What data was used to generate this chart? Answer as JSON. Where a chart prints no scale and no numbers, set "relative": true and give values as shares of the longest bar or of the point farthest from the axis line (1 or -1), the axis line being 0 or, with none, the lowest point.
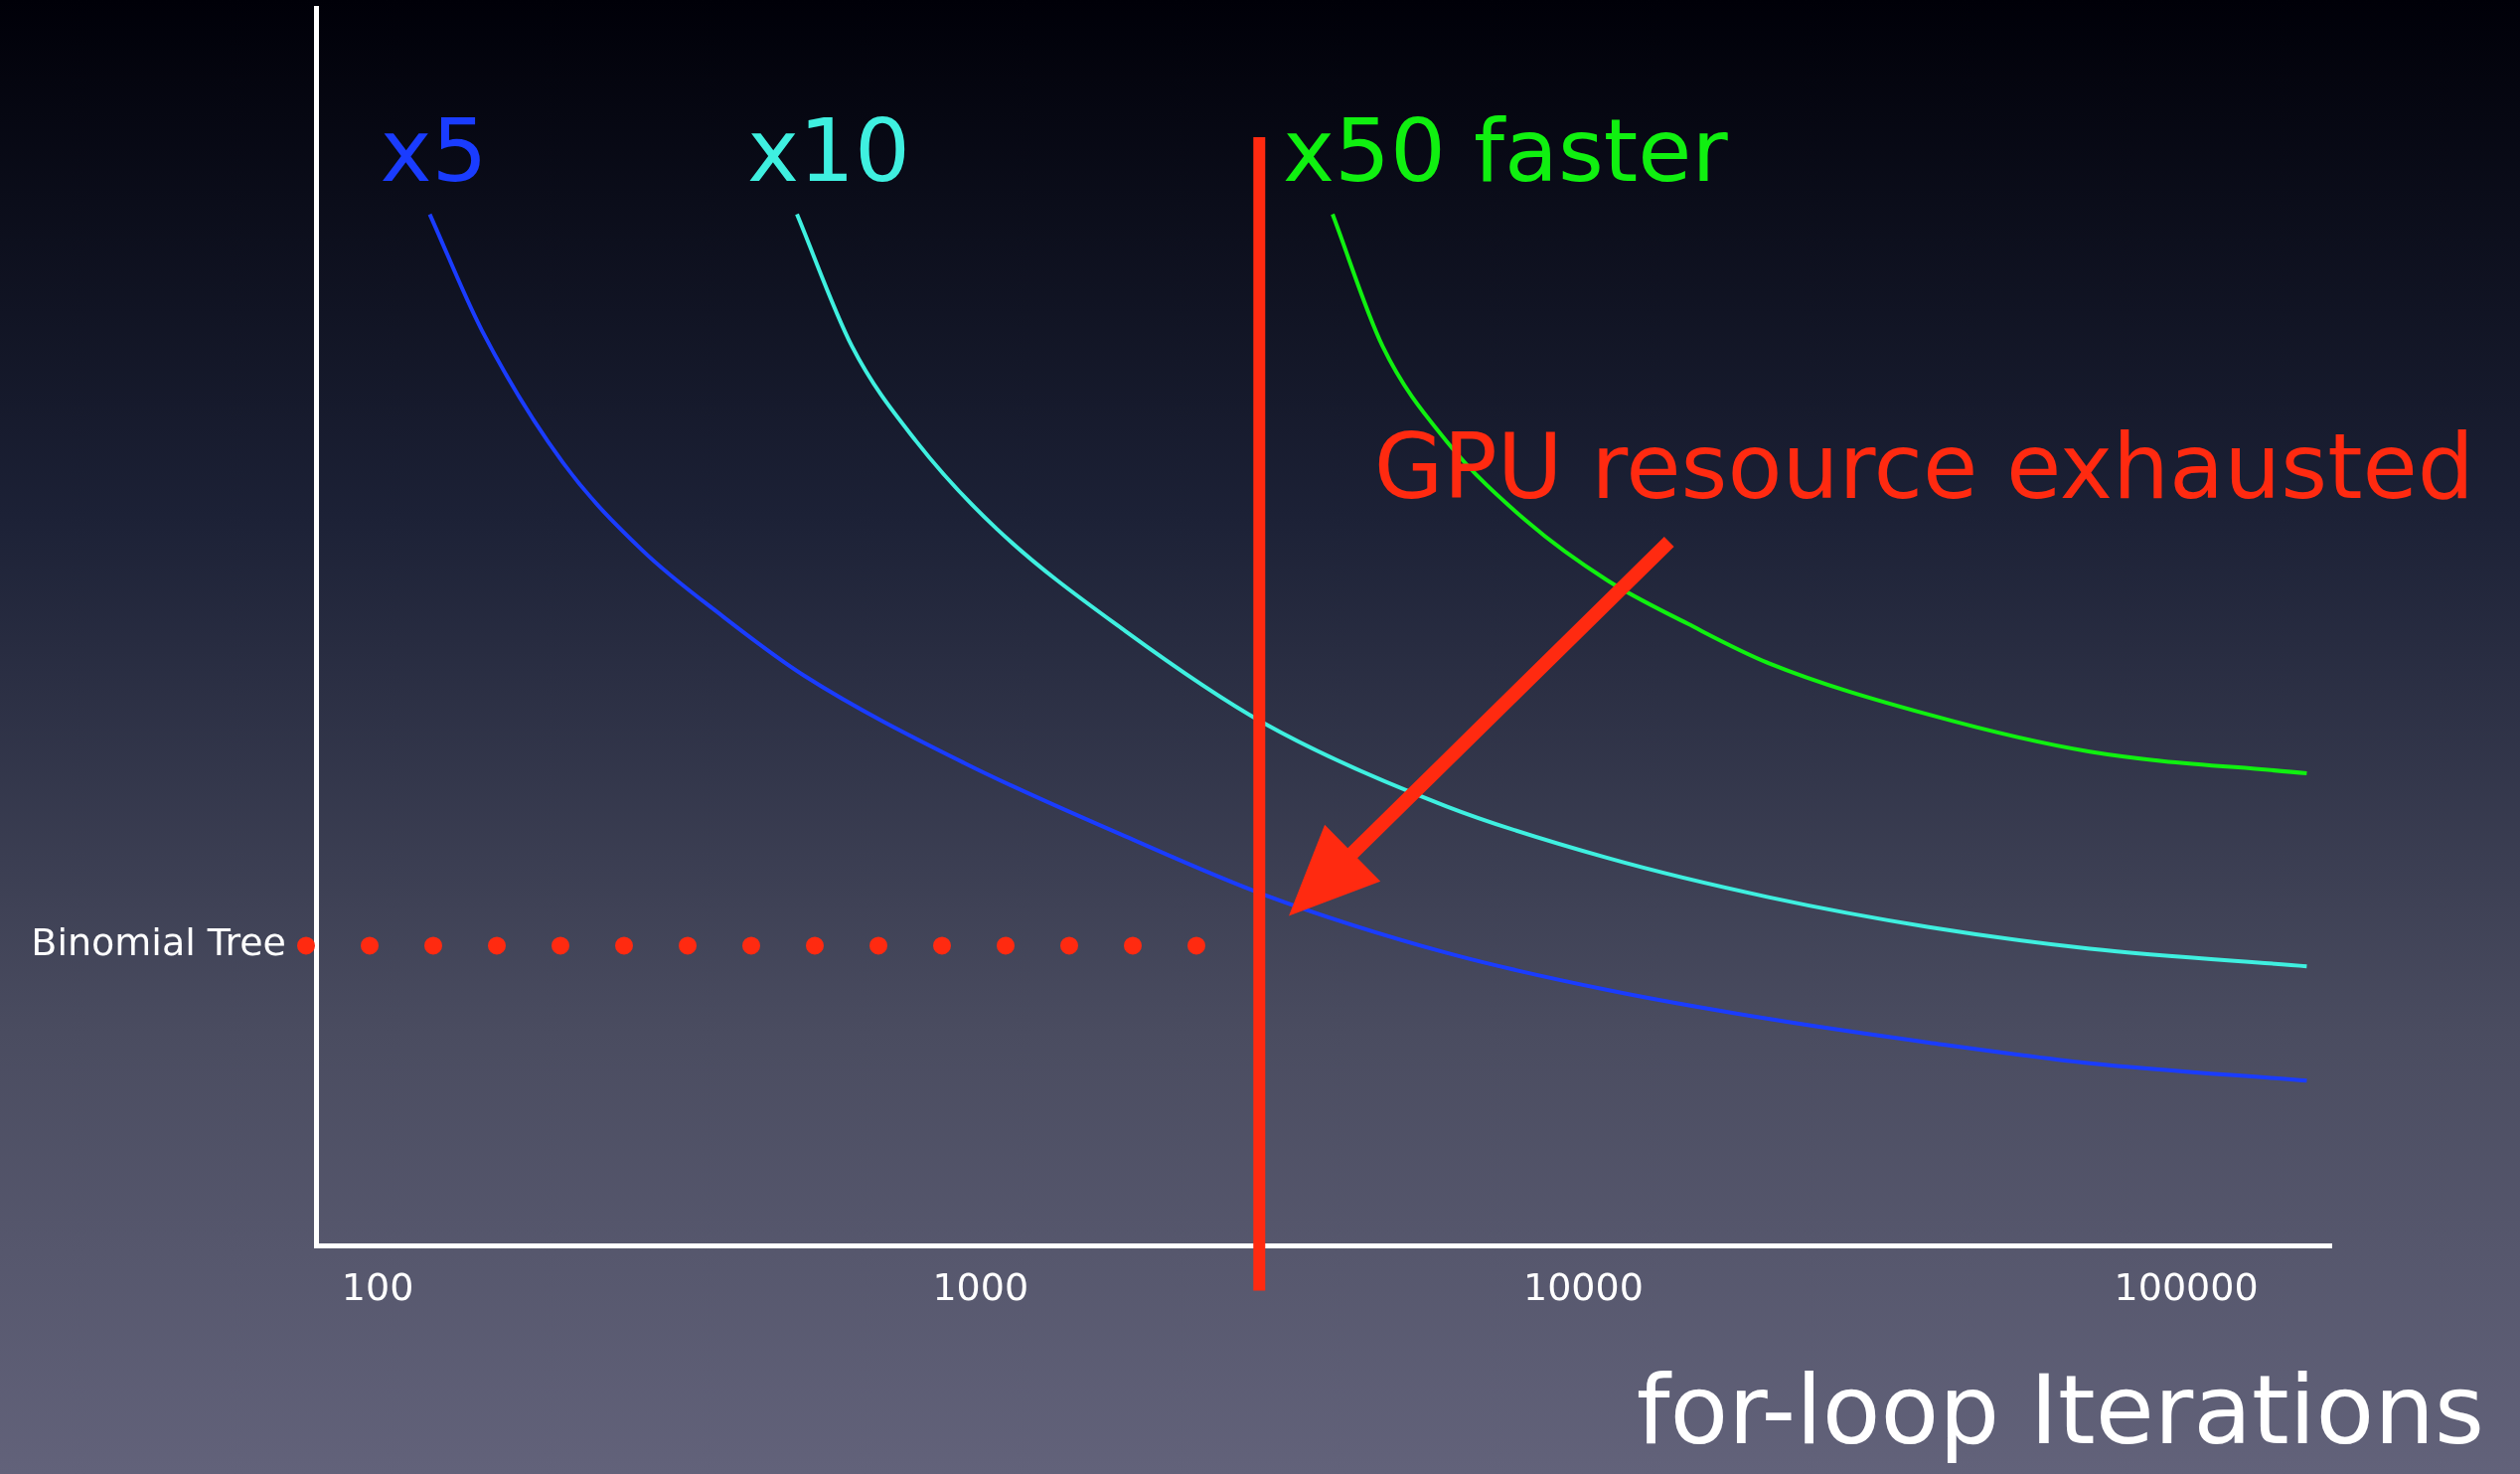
{
  "chart_data": {
    "type": "line",
    "xlabel": "for-loop Iterations",
    "relative": true,
    "log": "x",
    "grid": false,
    "legend": false,
    "marker": "none",
    "line_style": "solid",
    "xlim": [
      79,
      174000
    ],
    "xticks": [
      100,
      1000,
      10000,
      100000
    ],
    "series": [
      {
        "name": "x5",
        "color": "#1a3cff",
        "x": [
          122,
          149,
          203,
          275,
          374,
          509,
          940,
          1738,
          2965,
          5930,
          10965,
          20270,
          37400,
          69200,
          158500
        ],
        "values": [
          1.0,
          0.887,
          0.759,
          0.674,
          0.61,
          0.553,
          0.468,
          0.397,
          0.34,
          0.284,
          0.248,
          0.22,
          0.197,
          0.177,
          0.16
        ]
      },
      {
        "name": "x10",
        "color": "#3ff0e0",
        "x": [
          496,
          612,
          782,
          1064,
          1738,
          2965,
          5930,
          10965,
          20270,
          37400,
          69200,
          158500
        ],
        "values": [
          1.0,
          0.872,
          0.78,
          0.695,
          0.596,
          0.506,
          0.426,
          0.376,
          0.338,
          0.309,
          0.288,
          0.271
        ]
      },
      {
        "name": "x50 faster",
        "color": "#10f010",
        "x": [
          3837,
          4645,
          5930,
          8070,
          10965,
          14900,
          20270,
          37400,
          69200,
          158500
        ],
        "values": [
          1.0,
          0.872,
          0.78,
          0.702,
          0.645,
          0.603,
          0.565,
          0.515,
          0.479,
          0.458
        ]
      }
    ],
    "ref_lines": [
      {
        "axis": "y",
        "value": 0.291,
        "label": "Binomial Tree",
        "color": "#ff2a10",
        "line_style": "dotted"
      },
      {
        "axis": "x",
        "value": 2900,
        "label": "GPU resource exhausted",
        "color": "#ff2a10",
        "line_style": "solid"
      }
    ]
  }
}
